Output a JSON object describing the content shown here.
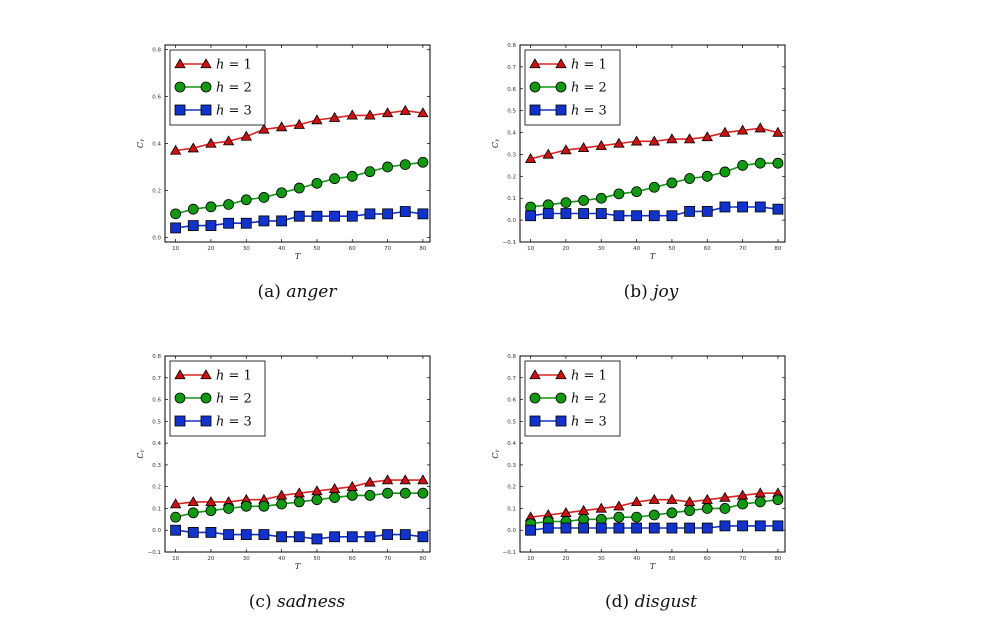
{
  "colors": {
    "h1_line": "#dd2222",
    "h1_marker": "#cc1111",
    "h2": "#119911",
    "h3": "#1133cc",
    "frame": "#000000"
  },
  "chart_data": [
    {
      "type": "line",
      "id": "anger",
      "caption_label": "(a)",
      "caption_word": "anger",
      "xlabel": "T",
      "ylabel": "Cᵧ",
      "xlim": [
        7,
        82
      ],
      "ylim": [
        -0.02,
        0.82
      ],
      "yticks": [
        0.0,
        0.2,
        0.4,
        0.6,
        0.8
      ],
      "ytick_labels": [
        "0.0",
        "0.2",
        "0.4",
        "0.6",
        "0.8"
      ],
      "xticks": [
        10,
        20,
        30,
        40,
        50,
        60,
        70,
        80
      ],
      "xtick_labels": [
        "10",
        "20",
        "30",
        "40",
        "50",
        "60",
        "70",
        "80"
      ],
      "x": [
        10,
        15,
        20,
        25,
        30,
        35,
        40,
        45,
        50,
        55,
        60,
        65,
        70,
        75,
        80
      ],
      "series": [
        {
          "name": "h = 1",
          "marker": "triangle",
          "values": [
            0.37,
            0.38,
            0.4,
            0.41,
            0.43,
            0.46,
            0.47,
            0.48,
            0.5,
            0.51,
            0.52,
            0.52,
            0.53,
            0.54,
            0.53
          ]
        },
        {
          "name": "h = 2",
          "marker": "circle",
          "values": [
            0.1,
            0.12,
            0.13,
            0.14,
            0.16,
            0.17,
            0.19,
            0.21,
            0.23,
            0.25,
            0.26,
            0.28,
            0.3,
            0.31,
            0.32
          ]
        },
        {
          "name": "h = 3",
          "marker": "square",
          "values": [
            0.04,
            0.05,
            0.05,
            0.06,
            0.06,
            0.07,
            0.07,
            0.09,
            0.09,
            0.09,
            0.09,
            0.1,
            0.1,
            0.11,
            0.1
          ]
        }
      ],
      "legend": {
        "position": "top-left",
        "entries": [
          {
            "prefix": "h",
            "suffix": "= 1"
          },
          {
            "prefix": "h",
            "suffix": "= 2"
          },
          {
            "prefix": "h",
            "suffix": "= 3"
          }
        ]
      }
    },
    {
      "type": "line",
      "id": "joy",
      "caption_label": "(b)",
      "caption_word": "joy",
      "xlabel": "T",
      "ylabel": "Cᵧ",
      "xlim": [
        7,
        82
      ],
      "ylim": [
        -0.1,
        0.8
      ],
      "yticks": [
        -0.1,
        0.0,
        0.1,
        0.2,
        0.3,
        0.4,
        0.5,
        0.6,
        0.7,
        0.8
      ],
      "ytick_labels": [
        "−0.1",
        "0.0",
        "0.1",
        "0.2",
        "0.3",
        "0.4",
        "0.5",
        "0.6",
        "0.7",
        "0.8"
      ],
      "xticks": [
        10,
        20,
        30,
        40,
        50,
        60,
        70,
        80
      ],
      "xtick_labels": [
        "10",
        "20",
        "30",
        "40",
        "50",
        "60",
        "70",
        "80"
      ],
      "x": [
        10,
        15,
        20,
        25,
        30,
        35,
        40,
        45,
        50,
        55,
        60,
        65,
        70,
        75,
        80
      ],
      "series": [
        {
          "name": "h = 1",
          "marker": "triangle",
          "values": [
            0.28,
            0.3,
            0.32,
            0.33,
            0.34,
            0.35,
            0.36,
            0.36,
            0.37,
            0.37,
            0.38,
            0.4,
            0.41,
            0.42,
            0.4
          ]
        },
        {
          "name": "h = 2",
          "marker": "circle",
          "values": [
            0.06,
            0.07,
            0.08,
            0.09,
            0.1,
            0.12,
            0.13,
            0.15,
            0.17,
            0.19,
            0.2,
            0.22,
            0.25,
            0.26,
            0.26
          ]
        },
        {
          "name": "h = 3",
          "marker": "square",
          "values": [
            0.02,
            0.03,
            0.03,
            0.03,
            0.03,
            0.02,
            0.02,
            0.02,
            0.02,
            0.04,
            0.04,
            0.06,
            0.06,
            0.06,
            0.05
          ]
        }
      ],
      "legend": {
        "position": "top-left",
        "entries": [
          {
            "prefix": "h",
            "suffix": "= 1"
          },
          {
            "prefix": "h",
            "suffix": "= 2"
          },
          {
            "prefix": "h",
            "suffix": "= 3"
          }
        ]
      }
    },
    {
      "type": "line",
      "id": "sadness",
      "caption_label": "(c)",
      "caption_word": "sadness",
      "xlabel": "T",
      "ylabel": "Cᵧ",
      "xlim": [
        7,
        82
      ],
      "ylim": [
        -0.1,
        0.8
      ],
      "yticks": [
        -0.1,
        0.0,
        0.1,
        0.2,
        0.3,
        0.4,
        0.5,
        0.6,
        0.7,
        0.8
      ],
      "ytick_labels": [
        "−0.1",
        "0.0",
        "0.1",
        "0.2",
        "0.3",
        "0.4",
        "0.5",
        "0.6",
        "0.7",
        "0.8"
      ],
      "xticks": [
        10,
        20,
        30,
        40,
        50,
        60,
        70,
        80
      ],
      "xtick_labels": [
        "10",
        "20",
        "30",
        "40",
        "50",
        "60",
        "70",
        "80"
      ],
      "x": [
        10,
        15,
        20,
        25,
        30,
        35,
        40,
        45,
        50,
        55,
        60,
        65,
        70,
        75,
        80
      ],
      "series": [
        {
          "name": "h = 1",
          "marker": "triangle",
          "values": [
            0.12,
            0.13,
            0.13,
            0.13,
            0.14,
            0.14,
            0.16,
            0.17,
            0.18,
            0.19,
            0.2,
            0.22,
            0.23,
            0.23,
            0.23
          ]
        },
        {
          "name": "h = 2",
          "marker": "circle",
          "values": [
            0.06,
            0.08,
            0.09,
            0.1,
            0.11,
            0.11,
            0.12,
            0.13,
            0.14,
            0.15,
            0.16,
            0.16,
            0.17,
            0.17,
            0.17
          ]
        },
        {
          "name": "h = 3",
          "marker": "square",
          "values": [
            0.0,
            -0.01,
            -0.01,
            -0.02,
            -0.02,
            -0.02,
            -0.03,
            -0.03,
            -0.04,
            -0.03,
            -0.03,
            -0.03,
            -0.02,
            -0.02,
            -0.03
          ]
        }
      ],
      "legend": {
        "position": "top-left",
        "entries": [
          {
            "prefix": "h",
            "suffix": "= 1"
          },
          {
            "prefix": "h",
            "suffix": "= 2"
          },
          {
            "prefix": "h",
            "suffix": "= 3"
          }
        ]
      }
    },
    {
      "type": "line",
      "id": "disgust",
      "caption_label": "(d)",
      "caption_word": "disgust",
      "xlabel": "T",
      "ylabel": "Cᵧ",
      "xlim": [
        7,
        82
      ],
      "ylim": [
        -0.1,
        0.8
      ],
      "yticks": [
        -0.1,
        0.0,
        0.1,
        0.2,
        0.3,
        0.4,
        0.5,
        0.6,
        0.7,
        0.8
      ],
      "ytick_labels": [
        "−0.1",
        "0.0",
        "0.1",
        "0.2",
        "0.3",
        "0.4",
        "0.5",
        "0.6",
        "0.7",
        "0.8"
      ],
      "xticks": [
        10,
        20,
        30,
        40,
        50,
        60,
        70,
        80
      ],
      "xtick_labels": [
        "10",
        "20",
        "30",
        "40",
        "50",
        "60",
        "70",
        "80"
      ],
      "x": [
        10,
        15,
        20,
        25,
        30,
        35,
        40,
        45,
        50,
        55,
        60,
        65,
        70,
        75,
        80
      ],
      "series": [
        {
          "name": "h = 1",
          "marker": "triangle",
          "values": [
            0.06,
            0.07,
            0.08,
            0.09,
            0.1,
            0.11,
            0.13,
            0.14,
            0.14,
            0.13,
            0.14,
            0.15,
            0.16,
            0.17,
            0.17
          ]
        },
        {
          "name": "h = 2",
          "marker": "circle",
          "values": [
            0.03,
            0.04,
            0.04,
            0.05,
            0.05,
            0.06,
            0.06,
            0.07,
            0.08,
            0.09,
            0.1,
            0.1,
            0.12,
            0.13,
            0.14
          ]
        },
        {
          "name": "h = 3",
          "marker": "square",
          "values": [
            0.0,
            0.01,
            0.01,
            0.01,
            0.01,
            0.01,
            0.01,
            0.01,
            0.01,
            0.01,
            0.01,
            0.02,
            0.02,
            0.02,
            0.02
          ]
        }
      ],
      "legend": {
        "position": "top-left",
        "entries": [
          {
            "prefix": "h",
            "suffix": "= 1"
          },
          {
            "prefix": "h",
            "suffix": "= 2"
          },
          {
            "prefix": "h",
            "suffix": "= 3"
          }
        ]
      }
    }
  ]
}
